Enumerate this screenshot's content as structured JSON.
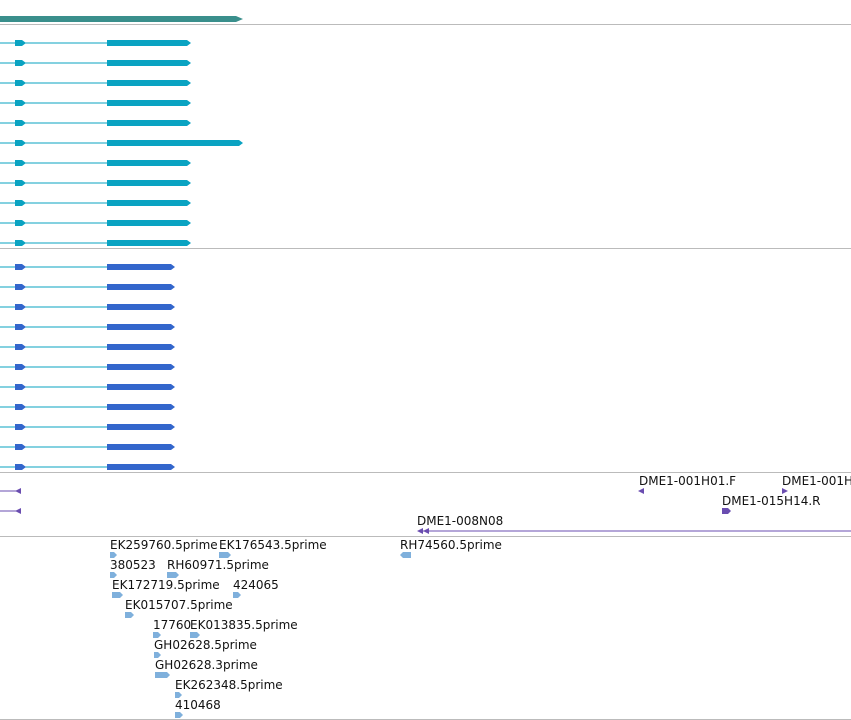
{
  "colors": {
    "track_gene": "#3a8f8c",
    "track_transcript": "#0aa3c2",
    "track_cds": "#3366cc",
    "track_bac": "#6a4db0",
    "track_est": "#7fb0dc",
    "separator": "#bbbbbb"
  },
  "labels": {
    "dme_001h01_f": "DME1-001H01.F",
    "dme_001h_cut": "DME1-001H",
    "dme_015h14_r": "DME1-015H14.R",
    "dme_008n08": "DME1-008N08",
    "ek259760": "EK259760.5prime",
    "ek176543": "EK176543.5prime",
    "rh74560": "RH74560.5prime",
    "n380523": "380523",
    "rh60971": "RH60971.5prime",
    "ek172719": "EK172719.5prime",
    "n424065": "424065",
    "ek015707": "EK015707.5prime",
    "n17760": "17760",
    "ek013835": "EK013835.5prime",
    "gh02628_5": "GH02628.5prime",
    "gh02628_3": "GH02628.3prime",
    "ek262348": "EK262348.5prime",
    "n410468": "410468"
  }
}
